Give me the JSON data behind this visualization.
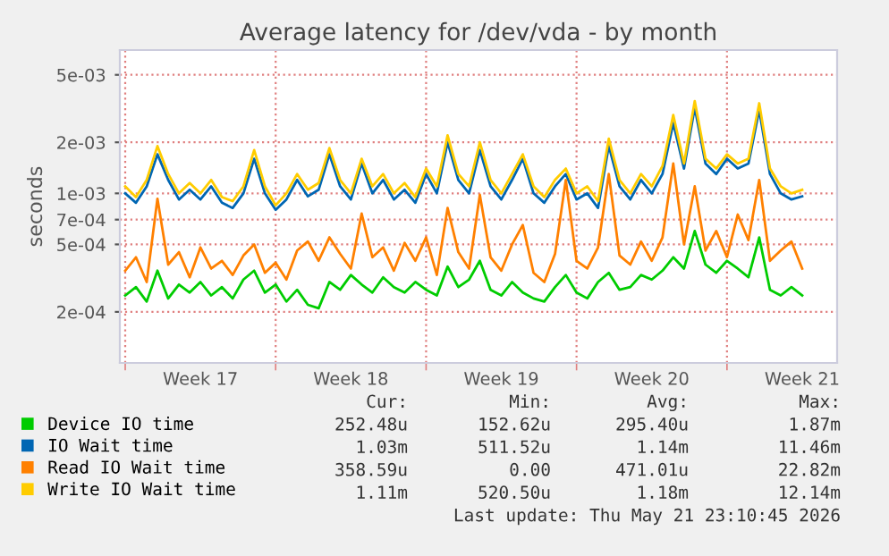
{
  "chart_data": {
    "type": "line",
    "title": "Average latency for /dev/vda - by month",
    "ylabel": "seconds",
    "log": "y",
    "ylim": [
      0.0001,
      0.007
    ],
    "yticks": [
      {
        "value": 0.0002,
        "label": "2e-04"
      },
      {
        "value": 0.0005,
        "label": "5e-04"
      },
      {
        "value": 0.0007,
        "label": "7e-04"
      },
      {
        "value": 0.001,
        "label": "1e-03"
      },
      {
        "value": 0.002,
        "label": "2e-03"
      },
      {
        "value": 0.005,
        "label": "5e-03"
      }
    ],
    "xlim": [
      "2026-04-19T18:00",
      "2026-05-23T03:00"
    ],
    "xticks": [
      {
        "value": "2026-04-20",
        "label": null
      },
      {
        "value": "2026-04-23T12:00",
        "label": "Week 17"
      },
      {
        "value": "2026-04-27",
        "label": null
      },
      {
        "value": "2026-04-30T12:00",
        "label": "Week 18"
      },
      {
        "value": "2026-05-04",
        "label": null
      },
      {
        "value": "2026-05-07T12:00",
        "label": "Week 19"
      },
      {
        "value": "2026-05-11",
        "label": null
      },
      {
        "value": "2026-05-14T12:00",
        "label": "Week 20"
      },
      {
        "value": "2026-05-18",
        "label": null
      },
      {
        "value": "2026-05-21T12:00",
        "label": "Week 21"
      }
    ],
    "grid": true,
    "legend": "bottom",
    "x": [
      "2026-04-20T00:00",
      "2026-04-20T12:00",
      "2026-04-21T00:00",
      "2026-04-21T12:00",
      "2026-04-22T00:00",
      "2026-04-22T12:00",
      "2026-04-23T00:00",
      "2026-04-23T12:00",
      "2026-04-24T00:00",
      "2026-04-24T12:00",
      "2026-04-25T00:00",
      "2026-04-25T12:00",
      "2026-04-26T00:00",
      "2026-04-26T12:00",
      "2026-04-27T00:00",
      "2026-04-27T12:00",
      "2026-04-28T00:00",
      "2026-04-28T12:00",
      "2026-04-29T00:00",
      "2026-04-29T12:00",
      "2026-04-30T00:00",
      "2026-04-30T12:00",
      "2026-05-01T00:00",
      "2026-05-01T12:00",
      "2026-05-02T00:00",
      "2026-05-02T12:00",
      "2026-05-03T00:00",
      "2026-05-03T12:00",
      "2026-05-04T00:00",
      "2026-05-04T12:00",
      "2026-05-05T00:00",
      "2026-05-05T12:00",
      "2026-05-06T00:00",
      "2026-05-06T12:00",
      "2026-05-07T00:00",
      "2026-05-07T12:00",
      "2026-05-08T00:00",
      "2026-05-08T12:00",
      "2026-05-09T00:00",
      "2026-05-09T12:00",
      "2026-05-10T00:00",
      "2026-05-10T12:00",
      "2026-05-11T00:00",
      "2026-05-11T12:00",
      "2026-05-12T00:00",
      "2026-05-12T12:00",
      "2026-05-13T00:00",
      "2026-05-13T12:00",
      "2026-05-14T00:00",
      "2026-05-14T12:00",
      "2026-05-15T00:00",
      "2026-05-15T12:00",
      "2026-05-16T00:00",
      "2026-05-16T12:00",
      "2026-05-17T00:00",
      "2026-05-17T12:00",
      "2026-05-18T00:00",
      "2026-05-18T12:00",
      "2026-05-19T00:00",
      "2026-05-19T12:00",
      "2026-05-20T00:00",
      "2026-05-20T12:00",
      "2026-05-21T00:00",
      "2026-05-21T12:00"
    ],
    "series": [
      {
        "name": "Device IO time",
        "color": "#00cc00",
        "values": [
          0.00025,
          0.00028,
          0.00023,
          0.00035,
          0.00024,
          0.00029,
          0.00026,
          0.0003,
          0.00025,
          0.00028,
          0.00024,
          0.00031,
          0.00035,
          0.00026,
          0.00029,
          0.00023,
          0.00027,
          0.00022,
          0.00021,
          0.0003,
          0.00027,
          0.00033,
          0.00029,
          0.00026,
          0.00032,
          0.00028,
          0.00026,
          0.0003,
          0.00027,
          0.00025,
          0.00037,
          0.00028,
          0.00031,
          0.0004,
          0.00027,
          0.00025,
          0.0003,
          0.00026,
          0.00024,
          0.00023,
          0.00028,
          0.00033,
          0.00026,
          0.00024,
          0.0003,
          0.00034,
          0.00027,
          0.00028,
          0.00033,
          0.00031,
          0.00035,
          0.00042,
          0.00036,
          0.0006,
          0.00038,
          0.00034,
          0.0004,
          0.00036,
          0.00032,
          0.00055,
          0.00027,
          0.00025,
          0.00028,
          0.00025
        ]
      },
      {
        "name": "IO Wait time",
        "color": "#0066b3",
        "values": [
          0.001,
          0.00088,
          0.0011,
          0.0017,
          0.0012,
          0.00092,
          0.00105,
          0.00092,
          0.0011,
          0.00088,
          0.00082,
          0.001,
          0.0016,
          0.001,
          0.0008,
          0.00092,
          0.0012,
          0.00096,
          0.00105,
          0.0017,
          0.0011,
          0.00092,
          0.0015,
          0.001,
          0.0012,
          0.00092,
          0.00105,
          0.00088,
          0.0013,
          0.001,
          0.002,
          0.0012,
          0.001,
          0.0018,
          0.0011,
          0.00092,
          0.0012,
          0.0016,
          0.001,
          0.00088,
          0.0011,
          0.0013,
          0.00092,
          0.001,
          0.00082,
          0.0019,
          0.0011,
          0.00092,
          0.0012,
          0.001,
          0.0013,
          0.0026,
          0.0014,
          0.0032,
          0.0015,
          0.0013,
          0.0016,
          0.0014,
          0.0015,
          0.0031,
          0.0013,
          0.001,
          0.00092,
          0.00096
        ]
      },
      {
        "name": "Read IO Wait time",
        "color": "#ff8000",
        "values": [
          0.00035,
          0.00042,
          0.0003,
          0.00093,
          0.00038,
          0.00045,
          0.00032,
          0.00048,
          0.00036,
          0.0004,
          0.00033,
          0.00043,
          0.0005,
          0.00034,
          0.00039,
          0.00031,
          0.00046,
          0.00052,
          0.0004,
          0.00055,
          0.00044,
          0.00036,
          0.00076,
          0.00042,
          0.00048,
          0.00035,
          0.00051,
          0.0004,
          0.00055,
          0.00033,
          0.00082,
          0.00045,
          0.00036,
          0.00098,
          0.00042,
          0.00035,
          0.0005,
          0.00065,
          0.00034,
          0.0003,
          0.00044,
          0.0012,
          0.0004,
          0.00036,
          0.00048,
          0.0013,
          0.00043,
          0.00038,
          0.00052,
          0.0004,
          0.00055,
          0.0015,
          0.0005,
          0.0011,
          0.00046,
          0.0006,
          0.00042,
          0.00075,
          0.00053,
          0.0012,
          0.0004,
          0.00046,
          0.00052,
          0.00036
        ]
      },
      {
        "name": "Write IO Wait time",
        "color": "#ffcc00",
        "values": [
          0.0011,
          0.00095,
          0.0012,
          0.0019,
          0.0013,
          0.001,
          0.00115,
          0.001,
          0.0012,
          0.00095,
          0.0009,
          0.0011,
          0.0018,
          0.0011,
          0.00085,
          0.001,
          0.0013,
          0.00105,
          0.00115,
          0.00185,
          0.0012,
          0.001,
          0.0016,
          0.0011,
          0.0013,
          0.001,
          0.00115,
          0.00095,
          0.0014,
          0.0011,
          0.0022,
          0.0013,
          0.0011,
          0.002,
          0.0012,
          0.001,
          0.0013,
          0.0017,
          0.0011,
          0.00095,
          0.0012,
          0.0014,
          0.001,
          0.0011,
          0.0009,
          0.0021,
          0.0012,
          0.001,
          0.0013,
          0.0011,
          0.00145,
          0.0029,
          0.0015,
          0.0035,
          0.0016,
          0.0014,
          0.0017,
          0.0015,
          0.0016,
          0.0034,
          0.0014,
          0.0011,
          0.001,
          0.00105
        ]
      }
    ],
    "annotations": [
      "Cur:",
      "Min:",
      "Avg:",
      "Max:",
      "252.48u",
      "152.62u",
      "295.40u",
      "1.87m",
      "1.03m",
      "511.52u",
      "1.14m",
      "11.46m",
      "358.59u",
      "0.00",
      "471.01u",
      "22.82m",
      "1.11m",
      "520.50u",
      "1.18m",
      "12.14m",
      "Last update: Thu May 21 23:10:45 2026"
    ]
  }
}
